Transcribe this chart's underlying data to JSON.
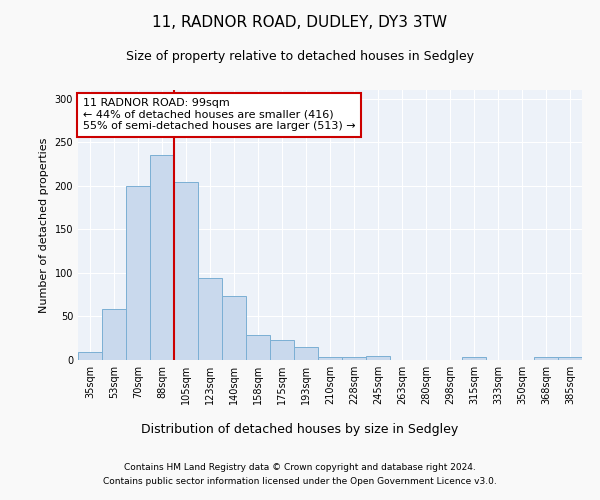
{
  "title1": "11, RADNOR ROAD, DUDLEY, DY3 3TW",
  "title2": "Size of property relative to detached houses in Sedgley",
  "xlabel": "Distribution of detached houses by size in Sedgley",
  "ylabel": "Number of detached properties",
  "categories": [
    "35sqm",
    "53sqm",
    "70sqm",
    "88sqm",
    "105sqm",
    "123sqm",
    "140sqm",
    "158sqm",
    "175sqm",
    "193sqm",
    "210sqm",
    "228sqm",
    "245sqm",
    "263sqm",
    "280sqm",
    "298sqm",
    "315sqm",
    "333sqm",
    "350sqm",
    "368sqm",
    "385sqm"
  ],
  "values": [
    9,
    59,
    200,
    235,
    204,
    94,
    73,
    29,
    23,
    15,
    4,
    4,
    5,
    0,
    0,
    0,
    3,
    0,
    0,
    3,
    3
  ],
  "bar_color": "#c9d9ed",
  "bar_edgecolor": "#7bafd4",
  "line_x_index": 4,
  "line_color": "#cc0000",
  "annotation_text": "11 RADNOR ROAD: 99sqm\n← 44% of detached houses are smaller (416)\n55% of semi-detached houses are larger (513) →",
  "annotation_box_color": "#ffffff",
  "annotation_box_edgecolor": "#cc0000",
  "ylim": [
    0,
    310
  ],
  "yticks": [
    0,
    50,
    100,
    150,
    200,
    250,
    300
  ],
  "background_color": "#edf2f9",
  "grid_color": "#ffffff",
  "footer_line1": "Contains HM Land Registry data © Crown copyright and database right 2024.",
  "footer_line2": "Contains public sector information licensed under the Open Government Licence v3.0.",
  "title1_fontsize": 11,
  "title2_fontsize": 9,
  "xlabel_fontsize": 9,
  "ylabel_fontsize": 8,
  "tick_fontsize": 7,
  "annotation_fontsize": 8,
  "footer_fontsize": 6.5,
  "fig_facecolor": "#f9f9f9"
}
